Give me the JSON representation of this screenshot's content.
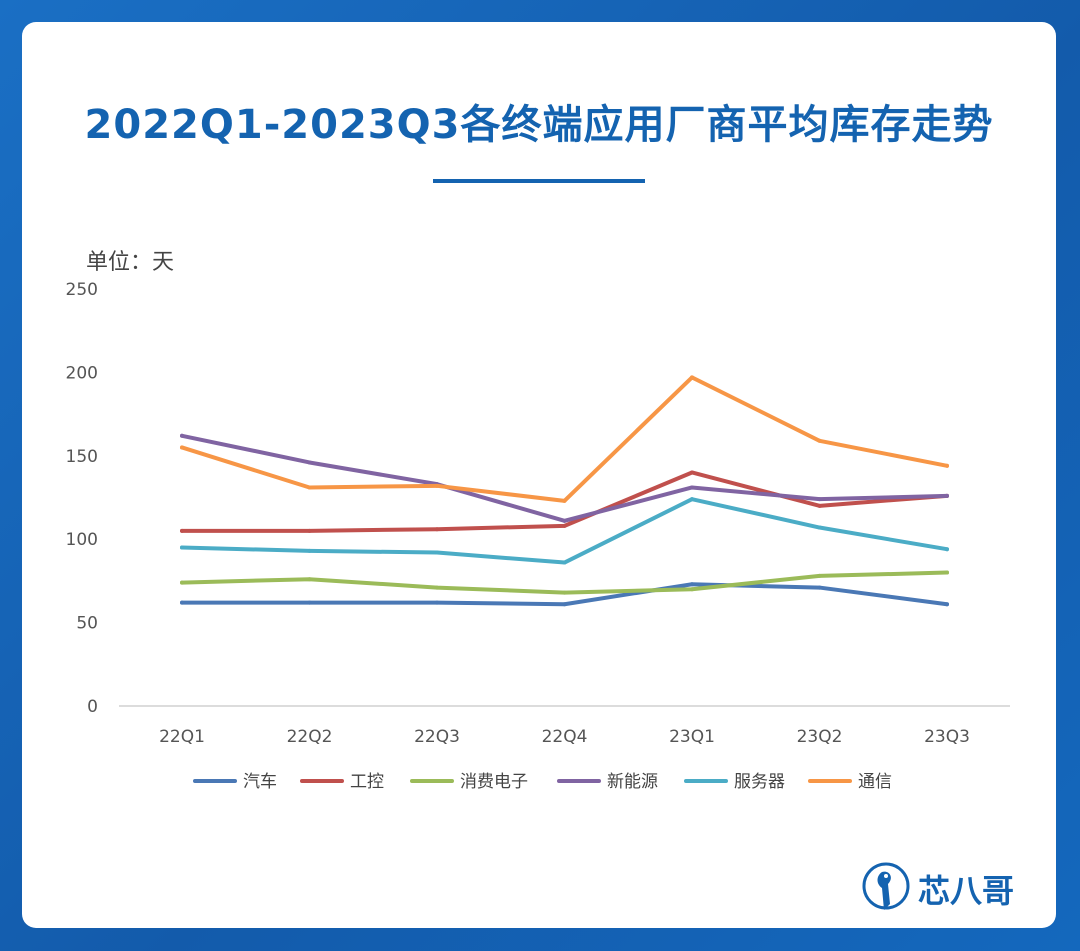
{
  "title": "2022Q1-2023Q3各终端应用厂商平均库存走势",
  "unit_label": "单位：天",
  "brand_name": "芯八哥",
  "chart_data": {
    "type": "line",
    "categories": [
      "22Q1",
      "22Q2",
      "22Q3",
      "22Q4",
      "23Q1",
      "23Q2",
      "23Q3"
    ],
    "ylim": [
      0,
      250
    ],
    "yticks": [
      "0",
      "50",
      "100",
      "150",
      "200",
      "250"
    ],
    "grid": false,
    "legend_position": "bottom",
    "series": [
      {
        "name": "汽车",
        "color": "#4a78b5",
        "values": [
          62,
          62,
          62,
          61,
          73,
          71,
          61
        ]
      },
      {
        "name": "工控",
        "color": "#c0504d",
        "values": [
          105,
          105,
          106,
          108,
          140,
          120,
          126
        ]
      },
      {
        "name": "消费电子",
        "color": "#9bbb59",
        "values": [
          74,
          76,
          71,
          68,
          70,
          78,
          80
        ]
      },
      {
        "name": "新能源",
        "color": "#8064a2",
        "values": [
          162,
          146,
          133,
          111,
          131,
          124,
          126
        ]
      },
      {
        "name": "服务器",
        "color": "#4bacc6",
        "values": [
          95,
          93,
          92,
          86,
          124,
          107,
          94
        ]
      },
      {
        "name": "通信",
        "color": "#f79646",
        "values": [
          155,
          131,
          132,
          123,
          197,
          159,
          144
        ]
      }
    ]
  }
}
